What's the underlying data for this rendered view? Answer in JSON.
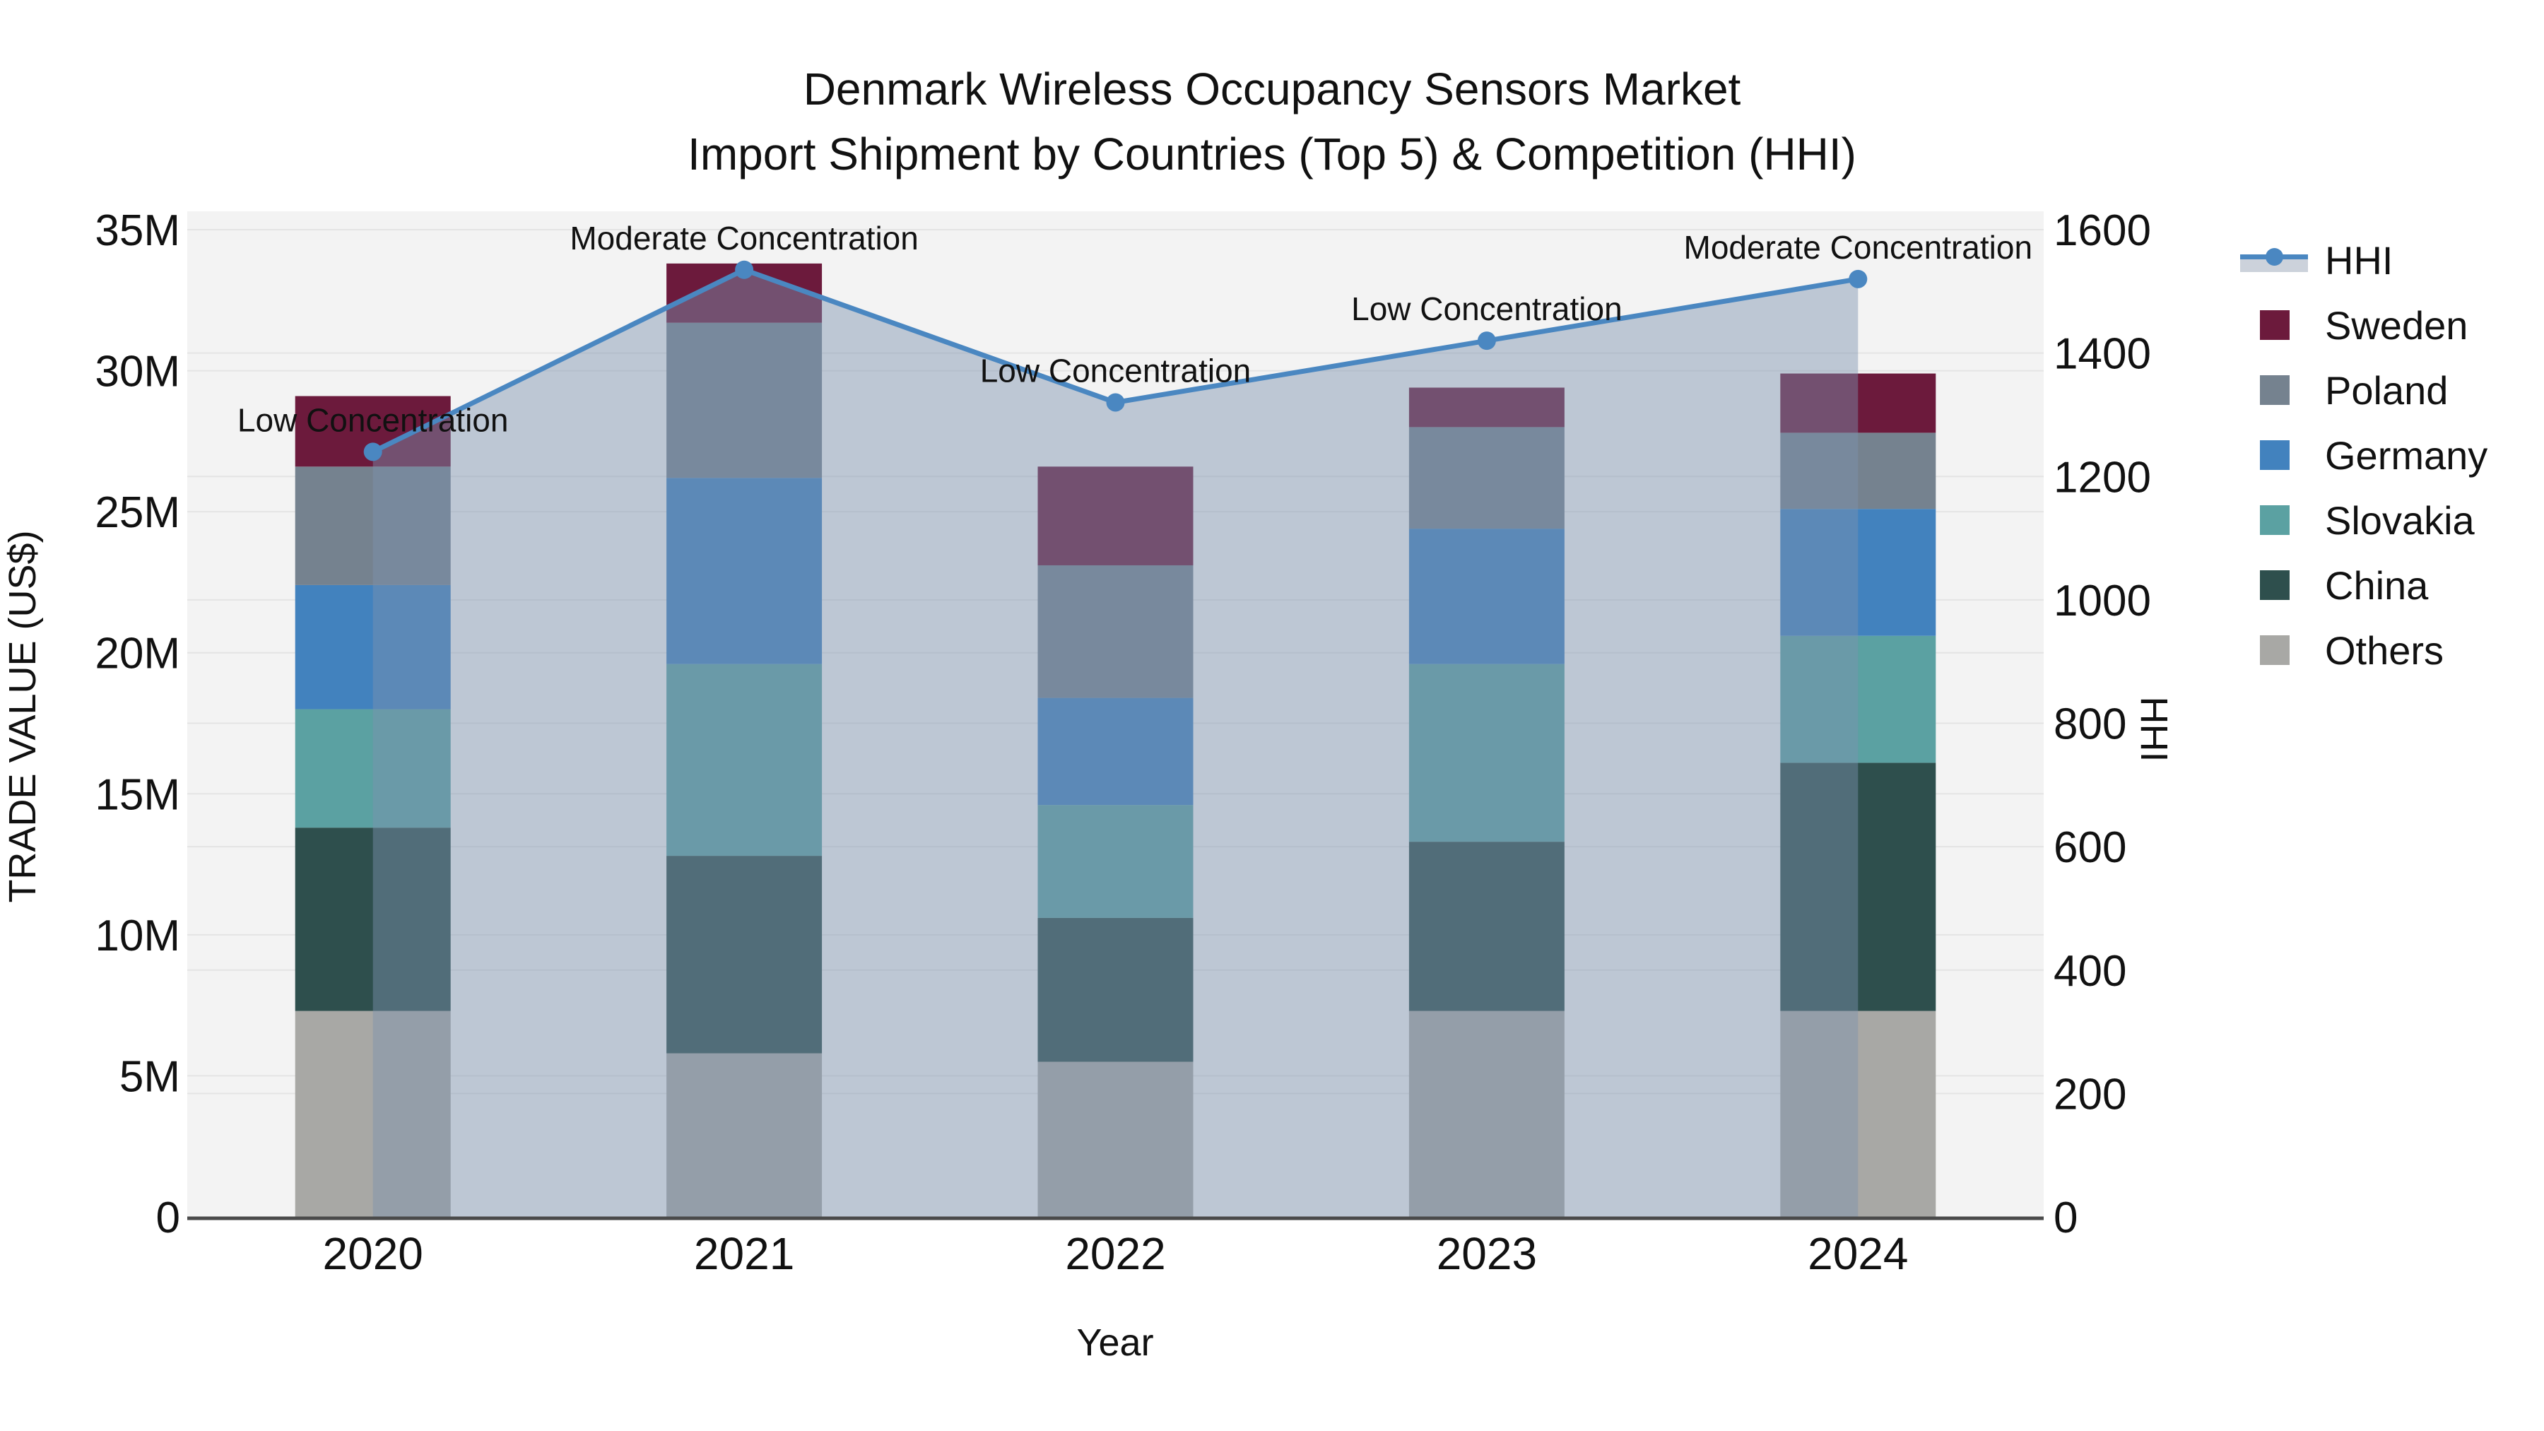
{
  "title": {
    "line1": "Denmark Wireless Occupancy Sensors Market",
    "line2": "Import Shipment by Countries (Top 5) & Competition (HHI)"
  },
  "legend": {
    "items": [
      {
        "label": "HHI",
        "swatch": "line"
      },
      {
        "label": "Sweden",
        "swatch": "#6C1A3C"
      },
      {
        "label": "Poland",
        "swatch": "#75828F"
      },
      {
        "label": "Germany",
        "swatch": "#4282BE"
      },
      {
        "label": "Slovakia",
        "swatch": "#5BA1A2"
      },
      {
        "label": "China",
        "swatch": "#2E4F4D"
      },
      {
        "label": "Others",
        "swatch": "#A8A8A5"
      }
    ]
  },
  "chart_data": {
    "type": "bar+line",
    "title": "Denmark Wireless Occupancy Sensors Market — Import Shipment by Countries (Top 5) & Competition (HHI)",
    "categories": [
      "2020",
      "2021",
      "2022",
      "2023",
      "2024"
    ],
    "x_label": "Year",
    "value_unit": "million US$",
    "stack_series": [
      {
        "name": "Others",
        "color": "#A8A8A5",
        "values": [
          7.3,
          5.8,
          5.5,
          7.3,
          7.3
        ]
      },
      {
        "name": "China",
        "color": "#2E4F4D",
        "values": [
          6.5,
          7.0,
          5.1,
          6.0,
          8.8
        ]
      },
      {
        "name": "Slovakia",
        "color": "#5BA1A2",
        "values": [
          4.2,
          6.8,
          4.0,
          6.3,
          4.5
        ]
      },
      {
        "name": "Germany",
        "color": "#4282BE",
        "values": [
          4.4,
          6.6,
          3.8,
          4.8,
          4.5
        ]
      },
      {
        "name": "Poland",
        "color": "#75828F",
        "values": [
          4.2,
          5.5,
          4.7,
          3.6,
          2.7
        ]
      },
      {
        "name": "Sweden",
        "color": "#6C1A3C",
        "values": [
          2.5,
          2.1,
          3.5,
          1.4,
          2.1
        ]
      }
    ],
    "bar_totals": [
      29.1,
      33.8,
      26.6,
      29.4,
      29.9
    ],
    "line_series": {
      "name": "HHI",
      "color": "#4A87C1",
      "area_fill": "rgba(124,146,176,0.45)",
      "values": [
        1240,
        1535,
        1320,
        1420,
        1520
      ]
    },
    "annotations": [
      "Low Concentration",
      "Moderate Concentration",
      "Low Concentration",
      "Low Concentration",
      "Moderate Concentration"
    ],
    "y_left": {
      "label": "TRADE VALUE (US$)",
      "range_millions": [
        0,
        35
      ],
      "ticks": [
        {
          "v": 0,
          "label": "0"
        },
        {
          "v": 5,
          "label": "5M"
        },
        {
          "v": 10,
          "label": "10M"
        },
        {
          "v": 15,
          "label": "15M"
        },
        {
          "v": 20,
          "label": "20M"
        },
        {
          "v": 25,
          "label": "25M"
        },
        {
          "v": 30,
          "label": "30M"
        },
        {
          "v": 35,
          "label": "35M"
        }
      ]
    },
    "y_right": {
      "label": "HHI",
      "range": [
        0,
        1600
      ],
      "ticks": [
        {
          "v": 0,
          "label": "0"
        },
        {
          "v": 200,
          "label": "200"
        },
        {
          "v": 400,
          "label": "400"
        },
        {
          "v": 600,
          "label": "600"
        },
        {
          "v": 800,
          "label": "800"
        },
        {
          "v": 1000,
          "label": "1000"
        },
        {
          "v": 1200,
          "label": "1200"
        },
        {
          "v": 1400,
          "label": "1400"
        },
        {
          "v": 1600,
          "label": "1600"
        }
      ]
    },
    "layout_hints": {
      "plot_bg": "#F3F3F3",
      "grid_color": "#E4E4E4",
      "axis_line_color": "#4A4A4A",
      "legend_position": "right",
      "grid": "horizontal-both-axes"
    }
  }
}
